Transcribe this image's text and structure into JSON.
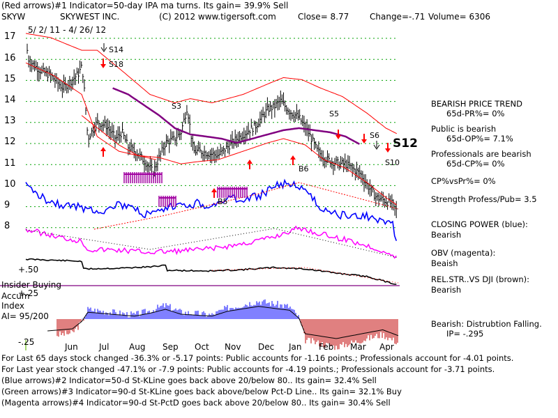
{
  "header": {
    "line1": "(Red arrows)#1 Indicator=50-day IPA ma turns.  Its gain= 39.9% Sell",
    "ticker": "SKYW",
    "company": "SKYWEST INC.",
    "copyright": "(C) 2012 www.tigersoft.com",
    "close": "Close=  8.77",
    "change": "Change=-.71",
    "volume": "Volume= 6306",
    "date_range": "5/ 2/ 11 - 4/ 26/ 12"
  },
  "right_panel": {
    "bearish_price_trend": "BEARISH PRICE TREND",
    "pr": "65d-PR%= 0%",
    "public_bearish": "Public is bearish",
    "op": "65d-OP%= 7.1%",
    "pros_bearish": "Professionals are bearish",
    "cp": "65d-CP%= 0%",
    "cpvspr": "CP%vsPr%=  0%",
    "strength": "Strength Profess/Pub= 3.5",
    "closing_power_l1": "CLOSING POWER (blue):",
    "closing_power_l2": "Bearish",
    "obv_l1": "OBV (magenta):",
    "obv_l2": "Beaish",
    "relstr_l1": "REL.STR..VS DJI (brown):",
    "relstr_l2": "Bearish",
    "distribution_l1": "Bearish:  Distrubtion Falling.",
    "distribution_l2": "IP= -.295"
  },
  "left_panel": {
    "insider_buying": "Insider Buying",
    "accum": "Accum",
    "index": "Index",
    "ai": "AI= 95/200",
    "plus50": "+.50",
    "plus25": "+.25",
    "minus25": "-.25"
  },
  "signals": {
    "s14": "S14",
    "s18": "S18",
    "s3": "S3",
    "s5": "S5",
    "s6": "S6",
    "s12": "S12",
    "s10": "S10",
    "b5": "B5",
    "b6": "B6"
  },
  "footer": {
    "line1": "For Last 65 days stock changed -36.3% or -5.17 points:  Public accounts for -1.16 points.;  Professionals account for -4.01 points.",
    "line2": "For Last year stock changed -47.1% or -7.9 points:  Public accounts for -4.19 points.;  Professionals account for -3.71 points.",
    "line3": "(Blue arrows)#2 Indicator=50-d St-KLine goes back above 20/below 80.. Its gain= 32.4% Sell",
    "line4": "(Green arrows)#3 Indicator=90-d St-KLine goes back above/below Pct-D Line.. Its gain= 32.1% Buy",
    "line5": "(Magenta arrows)#4 Indicator=90-d St-PctD goes back above 20/below 80.. Its gain= 30.4% Sell"
  },
  "colors": {
    "price": "#000000",
    "bands": "#ff0000",
    "ma50": "#800080",
    "closing_power": "#0000ff",
    "obv": "#ff00ff",
    "relstr": "#000000",
    "accum_pos": "#0000ff",
    "accum_neg": "#c00000",
    "grid": "#00a000"
  },
  "chart_data": {
    "type": "line",
    "title": "SKYW  SKYWEST INC.",
    "subtitle": "5/ 2/ 11 - 4/ 26/ 12",
    "ylim": [
      8,
      17
    ],
    "y_ticks": [
      "17",
      "16",
      "15",
      "14",
      "13",
      "12",
      "11",
      "10",
      "9",
      "8"
    ],
    "x_ticks": [
      "Jun",
      "Jul",
      "Aug",
      "Sep",
      "Oct",
      "Nov",
      "Dec",
      "Jan",
      "Feb",
      "Mar",
      "Apr"
    ],
    "price_series": {
      "name": "Close",
      "x_months": [
        0.0,
        0.1,
        0.25,
        0.5,
        0.8,
        1.0,
        1.2,
        1.5,
        1.7,
        1.8,
        1.85,
        2.0,
        2.3,
        2.6,
        2.9,
        3.1,
        3.3,
        3.6,
        3.9,
        4.1,
        4.3,
        4.5,
        4.8,
        5.0,
        5.2,
        5.4,
        5.6,
        5.9,
        6.2,
        6.5,
        6.8,
        7.1,
        7.4,
        7.6,
        7.8,
        8.0,
        8.2,
        8.5,
        8.8,
        9.1,
        9.4,
        9.7,
        9.9,
        10.1,
        10.3,
        10.5,
        10.8,
        11.0,
        11.1,
        11.2,
        11.3,
        11.5,
        11.8,
        11.95
      ],
      "values": [
        16.8,
        15.9,
        15.7,
        15.4,
        15.2,
        14.9,
        14.6,
        15.0,
        15.3,
        15.6,
        15.2,
        12.2,
        13.0,
        12.8,
        12.2,
        12.5,
        11.8,
        11.5,
        11.0,
        10.6,
        11.3,
        12.0,
        12.2,
        12.5,
        13.7,
        11.6,
        11.6,
        11.5,
        11.4,
        11.8,
        12.2,
        12.5,
        12.8,
        13.2,
        13.6,
        13.7,
        14.0,
        13.5,
        13.2,
        12.5,
        11.6,
        11.2,
        11.1,
        11.0,
        11.0,
        10.8,
        10.5,
        10.0,
        9.8,
        9.6,
        9.4,
        9.3,
        9.1,
        8.77
      ]
    },
    "ma50_series": {
      "name": "50-day MA",
      "x_months": [
        2.8,
        3.3,
        3.8,
        4.3,
        4.8,
        5.3,
        5.8,
        6.3,
        6.8,
        7.3,
        7.8,
        8.3,
        8.8,
        9.3,
        9.8,
        10.3,
        10.8
      ],
      "values": [
        14.6,
        14.3,
        13.8,
        13.3,
        12.7,
        12.4,
        12.3,
        12.2,
        12.0,
        12.2,
        12.4,
        12.6,
        12.7,
        12.6,
        12.5,
        12.3,
        11.9
      ]
    },
    "indicators": [
      "Closing Power (blue)",
      "OBV (magenta)",
      "Rel.Str. vs DJI (brown)",
      "Accum Index"
    ]
  }
}
